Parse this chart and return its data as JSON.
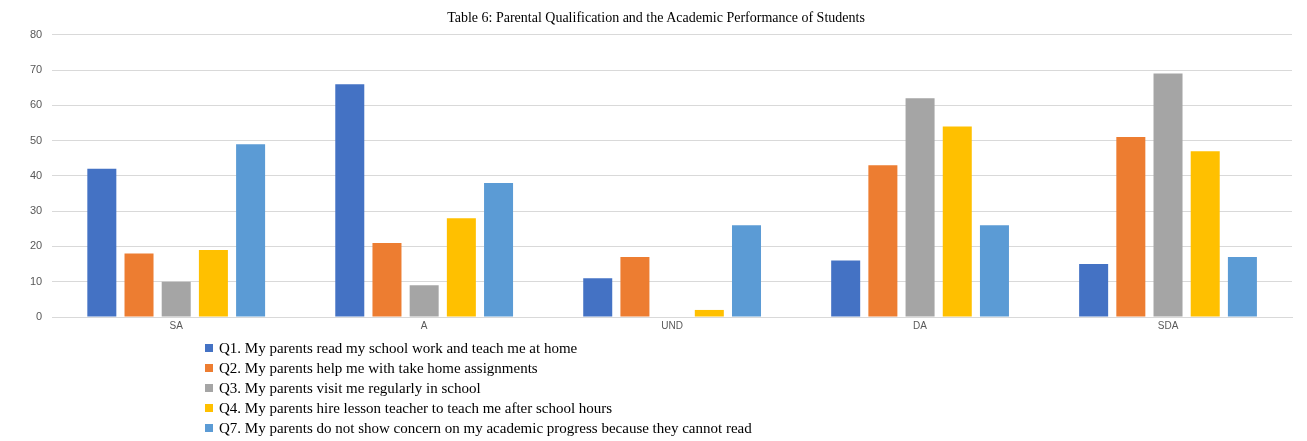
{
  "chart_data": {
    "type": "bar",
    "title": "Table 6: Parental Qualification and the Academic Performance of Students",
    "categories": [
      "SA",
      "A",
      "UND",
      "DA",
      "SDA"
    ],
    "series": [
      {
        "name": "Q1. My parents read my school work and teach me at home",
        "color": "#4472c4",
        "values": [
          42,
          66,
          11,
          16,
          15
        ]
      },
      {
        "name": "Q2. My parents help me with take home assignments",
        "color": "#ed7d31",
        "values": [
          18,
          21,
          17,
          43,
          51
        ]
      },
      {
        "name": "Q3. My parents visit me regularly in school",
        "color": "#a5a5a5",
        "values": [
          10,
          9,
          0,
          62,
          69
        ]
      },
      {
        "name": "Q4. My parents hire lesson teacher to teach me after school hours",
        "color": "#ffc000",
        "values": [
          19,
          28,
          2,
          54,
          47
        ]
      },
      {
        "name": "Q7. My parents do not show concern on my academic progress because they cannot read",
        "color": "#5b9bd5",
        "values": [
          49,
          38,
          26,
          26,
          17
        ]
      }
    ],
    "ylim": [
      0,
      80
    ],
    "yticks": [
      0,
      10,
      20,
      30,
      40,
      50,
      60,
      70,
      80
    ],
    "grid": "y",
    "legend": "bottom"
  }
}
